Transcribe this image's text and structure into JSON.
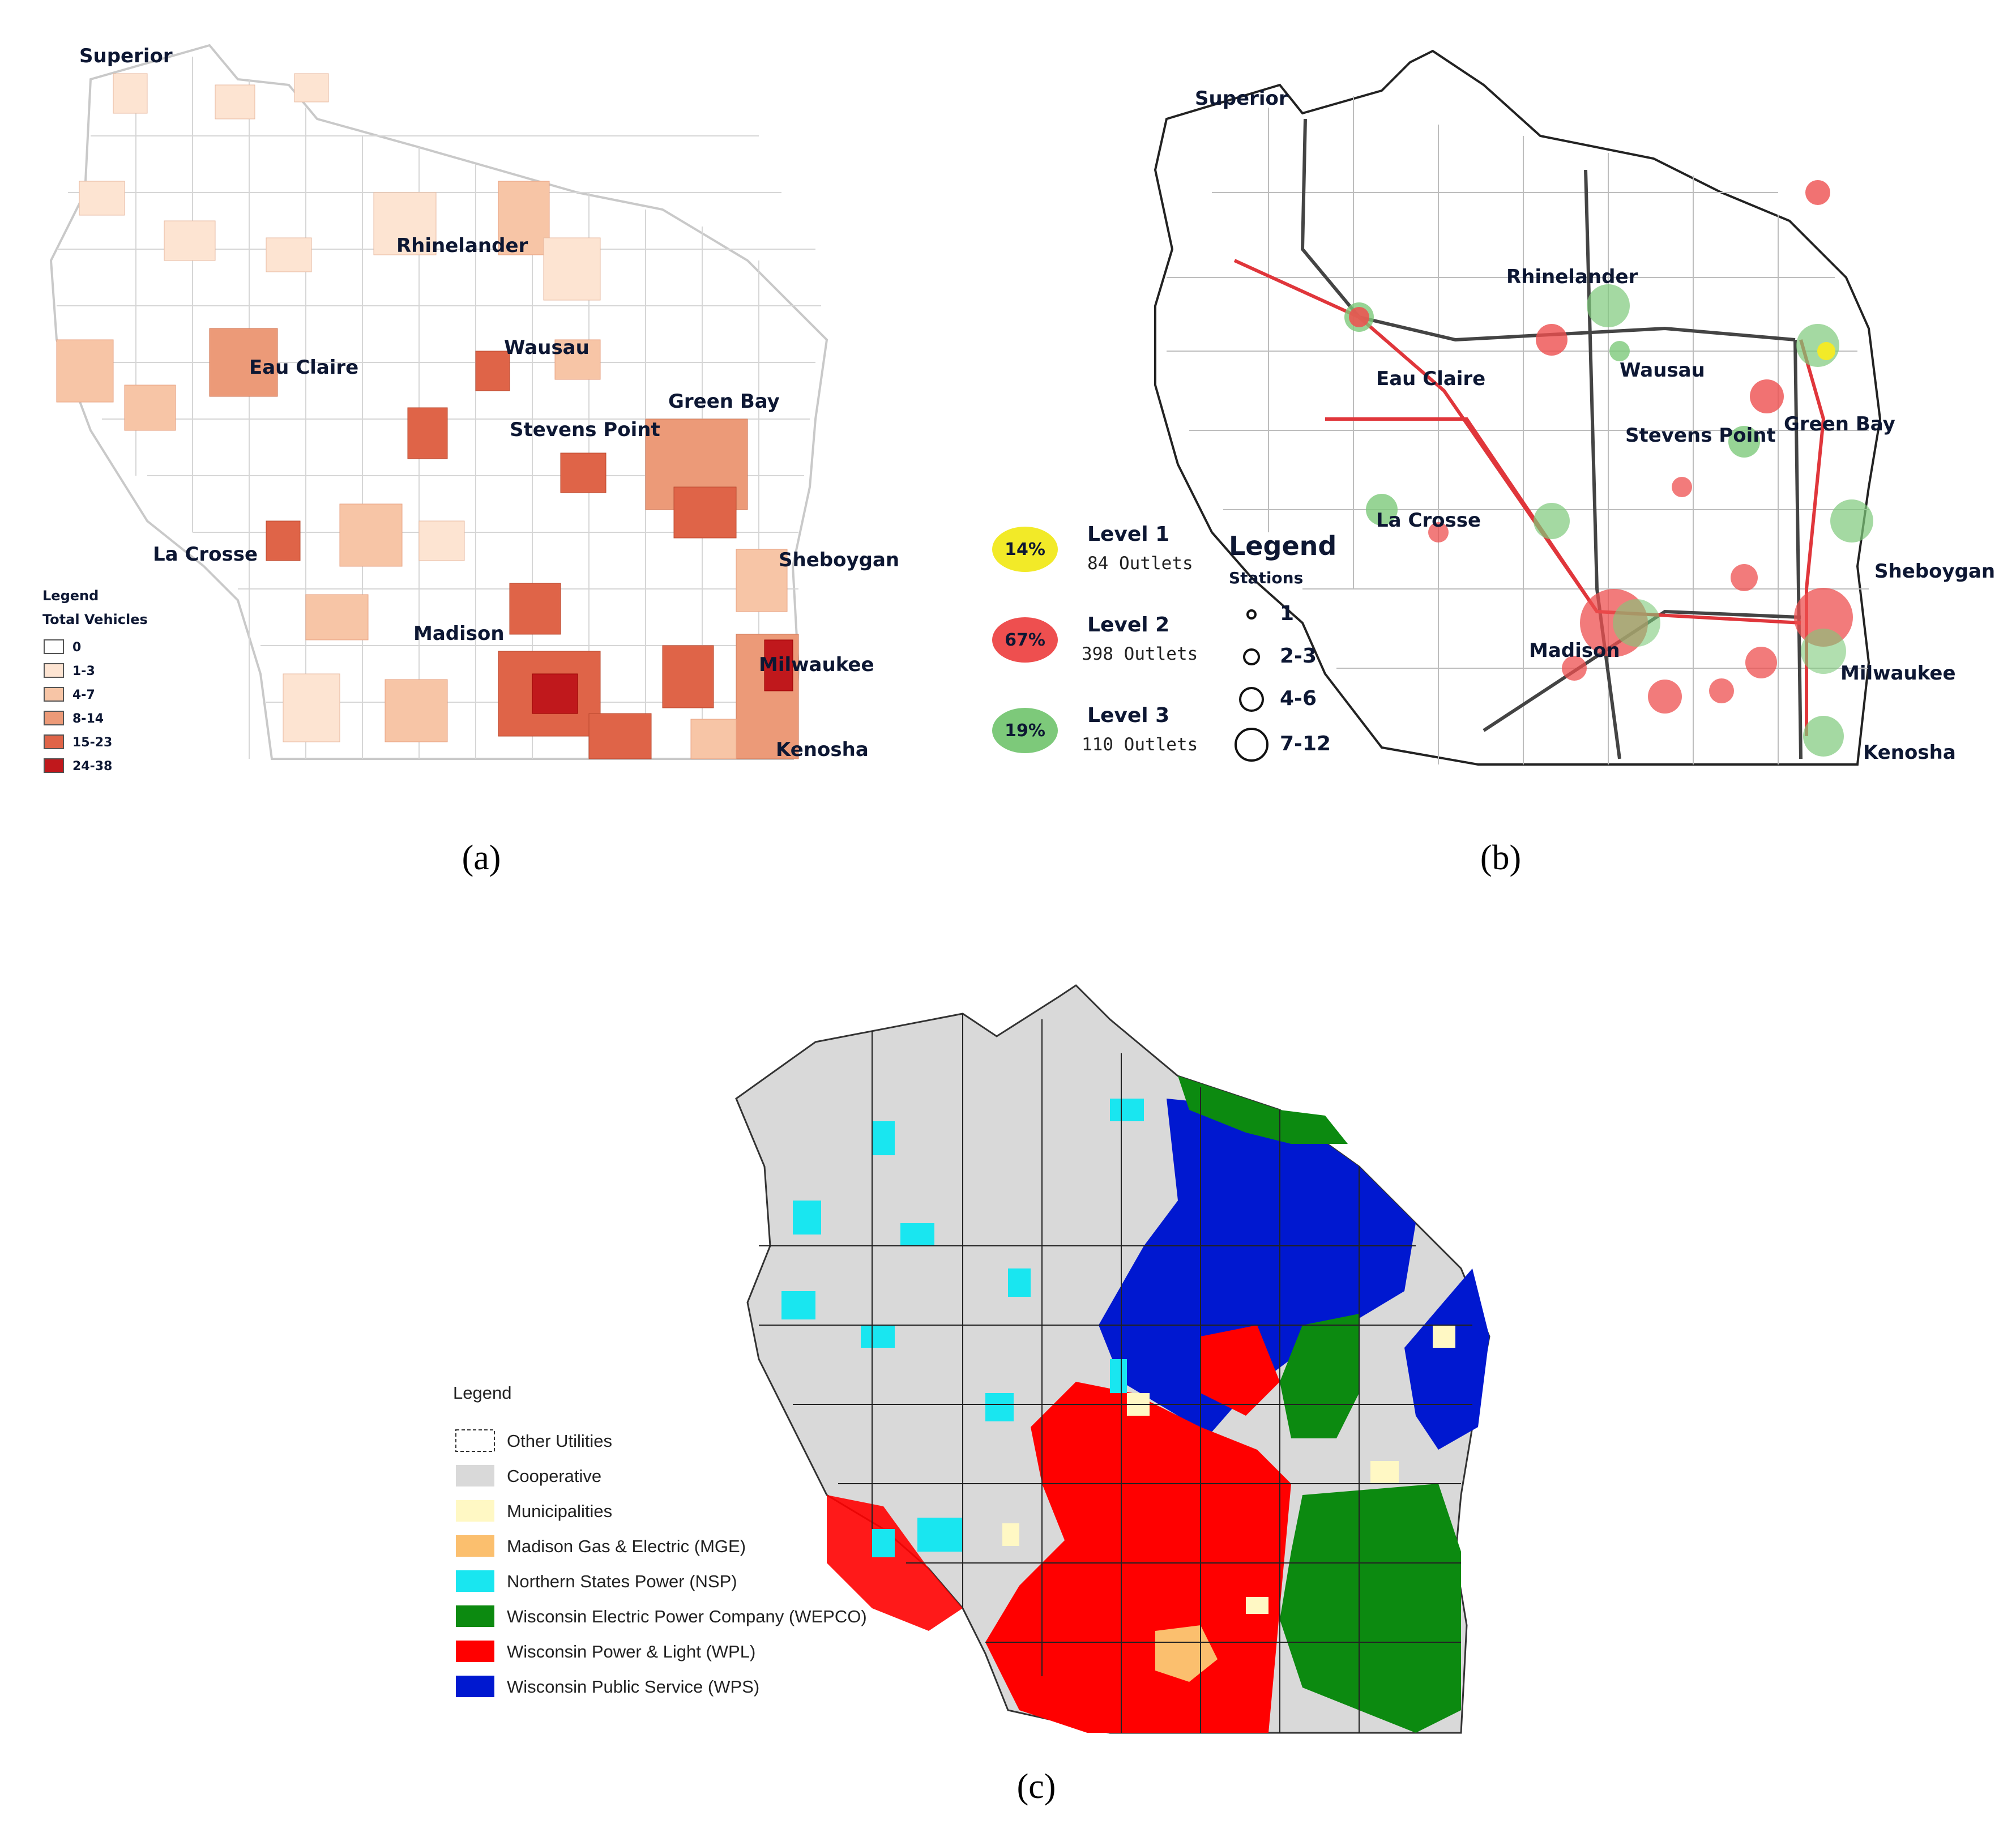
{
  "panels": {
    "a": {
      "caption": "(a)",
      "cities": [
        "Superior",
        "Rhinelander",
        "Wausau",
        "Eau Claire",
        "Stevens Point",
        "Green Bay",
        "La Crosse",
        "Sheboygan",
        "Madison",
        "Milwaukee",
        "Kenosha"
      ],
      "legend": {
        "title": "Legend",
        "subtitle": "Total Vehicles",
        "classes": [
          {
            "label": "0",
            "color": "#ffffff"
          },
          {
            "label": "1-3",
            "color": "#fde4d2"
          },
          {
            "label": "4-7",
            "color": "#f7c5a6"
          },
          {
            "label": "8-14",
            "color": "#ec9a78"
          },
          {
            "label": "15-23",
            "color": "#df6448"
          },
          {
            "label": "24-38",
            "color": "#c0181c"
          }
        ]
      }
    },
    "b": {
      "caption": "(b)",
      "cities": [
        "Superior",
        "Rhinelander",
        "Eau Claire",
        "Wausau",
        "Stevens Point",
        "Green Bay",
        "La Crosse",
        "Sheboygan",
        "Madison",
        "Milwaukee",
        "Kenosha"
      ],
      "levels": [
        {
          "pct": "14%",
          "name": "Level 1",
          "outlets": "84 Outlets",
          "color": "#f2ea28"
        },
        {
          "pct": "67%",
          "name": "Level 2",
          "outlets": "398 Outlets",
          "color": "#ee4f4f"
        },
        {
          "pct": "19%",
          "name": "Level 3",
          "outlets": "110 Outlets",
          "color": "#7dc97a"
        }
      ],
      "legend": {
        "title": "Legend",
        "subtitle": "Stations",
        "sizes": [
          "1",
          "2-3",
          "4-6",
          "7-12"
        ]
      }
    },
    "c": {
      "caption": "(c)",
      "legend": {
        "title": "Legend",
        "items": [
          {
            "label": "Other Utilities",
            "color": "#ffffff"
          },
          {
            "label": "Cooperative",
            "color": "#d9d9d9"
          },
          {
            "label": "Municipalities",
            "color": "#fff8c4"
          },
          {
            "label": "Madison Gas & Electric (MGE)",
            "color": "#fbbf6e"
          },
          {
            "label": "Northern States Power (NSP)",
            "color": "#19e6f0"
          },
          {
            "label": "Wisconsin Electric Power Company (WEPCO)",
            "color": "#0c8a10"
          },
          {
            "label": "Wisconsin Power & Light (WPL)",
            "color": "#ff0000"
          },
          {
            "label": "Wisconsin Public Service (WPS)",
            "color": "#0018d0"
          }
        ]
      }
    }
  }
}
